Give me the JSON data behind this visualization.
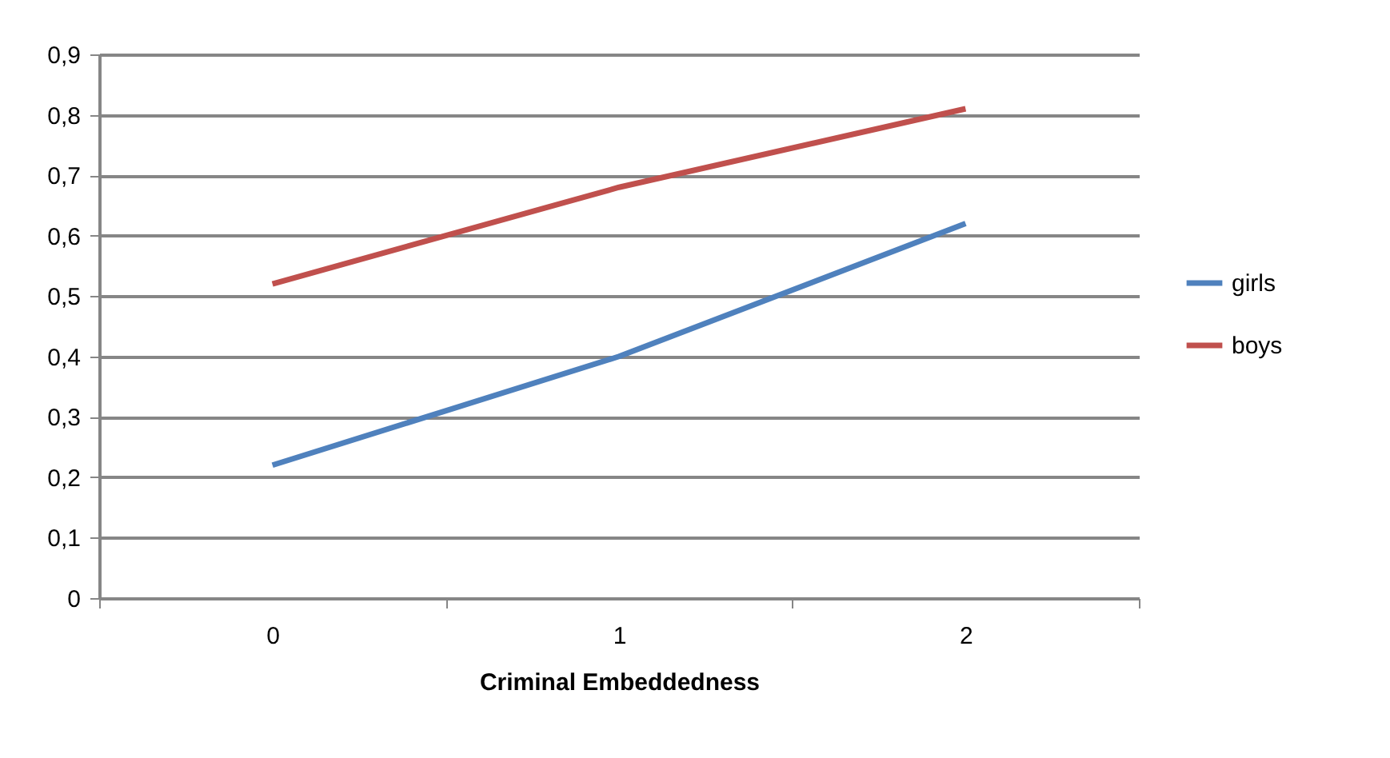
{
  "chart_data": {
    "type": "line",
    "xlabel": "Criminal Embeddedness",
    "categories": [
      "0",
      "1",
      "2"
    ],
    "series": [
      {
        "name": "girls",
        "color": "#4f81bd",
        "values": [
          0.22,
          0.4,
          0.62
        ]
      },
      {
        "name": "boys",
        "color": "#c0504d",
        "values": [
          0.52,
          0.68,
          0.81
        ]
      }
    ],
    "ylim": [
      0,
      0.9
    ],
    "yticks": [
      0,
      {
        "value": 0.1,
        "label": "0,1"
      },
      {
        "value": 0.2,
        "label": "0,2"
      },
      {
        "value": 0.3,
        "label": "0,3"
      },
      {
        "value": 0.4,
        "label": "0,4"
      },
      {
        "value": 0.5,
        "label": "0,5"
      },
      {
        "value": 0.6,
        "label": "0,6"
      },
      {
        "value": 0.7,
        "label": "0,7"
      },
      {
        "value": 0.8,
        "label": "0,8"
      },
      {
        "value": 0.9,
        "label": "0,9"
      }
    ],
    "grid": "y",
    "legend": "right",
    "marker": "none",
    "line_style": "solid"
  }
}
